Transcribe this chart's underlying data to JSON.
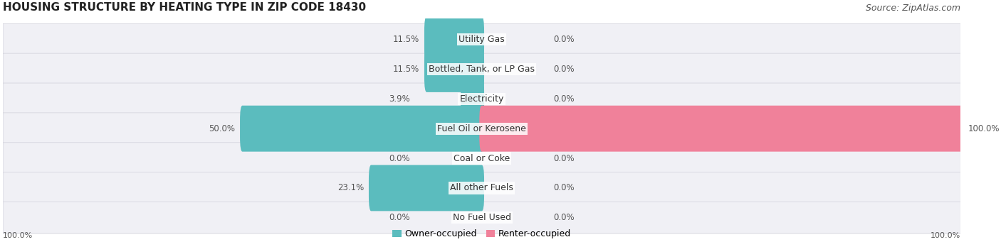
{
  "title": "HOUSING STRUCTURE BY HEATING TYPE IN ZIP CODE 18430",
  "source": "Source: ZipAtlas.com",
  "categories": [
    "Utility Gas",
    "Bottled, Tank, or LP Gas",
    "Electricity",
    "Fuel Oil or Kerosene",
    "Coal or Coke",
    "All other Fuels",
    "No Fuel Used"
  ],
  "owner_values": [
    11.5,
    11.5,
    3.9,
    50.0,
    0.0,
    23.1,
    0.0
  ],
  "renter_values": [
    0.0,
    0.0,
    0.0,
    100.0,
    0.0,
    0.0,
    0.0
  ],
  "owner_color": "#5bbcbe",
  "renter_color": "#f0819a",
  "bar_bg_color": "#e8e8ee",
  "row_bg_color": "#f0f0f5",
  "title_fontsize": 11,
  "source_fontsize": 9,
  "label_fontsize": 8.5,
  "category_fontsize": 9,
  "legend_fontsize": 9,
  "axis_label_fontsize": 8,
  "max_val": 100.0,
  "left_axis_label": "100.0%",
  "right_axis_label": "100.0%",
  "background_color": "#ffffff"
}
